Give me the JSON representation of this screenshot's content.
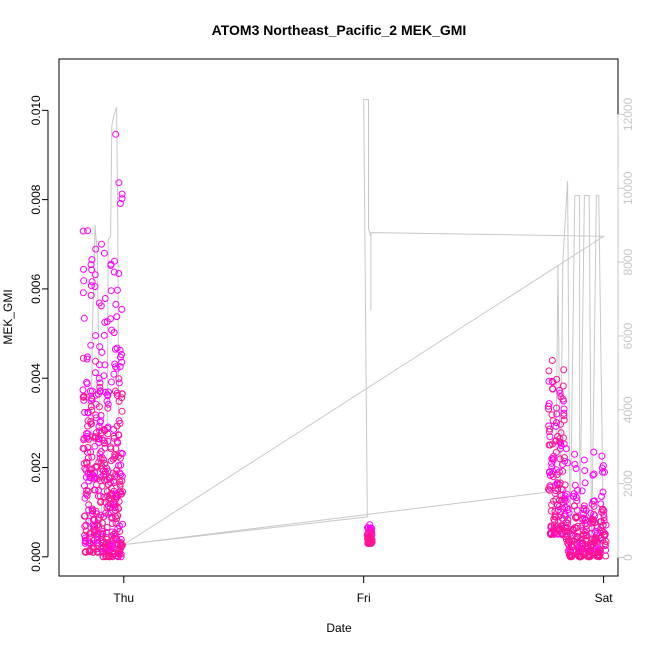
{
  "chart_data": {
    "type": "scatter",
    "title": "ATOM3 Northeast_Pacific_2 MEK_GMI",
    "xlabel": "Date",
    "ylabel": "MEK_GMI",
    "x_ticks": [
      {
        "label": "Thu",
        "day": 1.0
      },
      {
        "label": "Fri",
        "day": 2.0
      },
      {
        "label": "Sat",
        "day": 3.0
      }
    ],
    "xlim": [
      0.73,
      3.06
    ],
    "ylim_left": [
      -0.00043,
      0.01115
    ],
    "y_ticks_left": [
      0.0,
      0.002,
      0.004,
      0.006,
      0.008,
      0.01
    ],
    "y_tick_labels_left": [
      "0.000",
      "0.002",
      "0.004",
      "0.006",
      "0.008",
      "0.010"
    ],
    "ylim_right": [
      -500,
      13500
    ],
    "y_ticks_right": [
      0,
      2000,
      4000,
      6000,
      8000,
      10000,
      12000
    ],
    "y_tick_labels_right": [
      "0",
      "2000",
      "4000",
      "6000",
      "8000",
      "10000",
      "12000"
    ],
    "colors": {
      "series_a": "#ff00ff",
      "series_b": "#ff1493",
      "altitude_line": "#c8c8c8"
    },
    "point_clusters": [
      {
        "series": "series_a",
        "x_start": 0.83,
        "x_end": 0.905,
        "count": 110,
        "y_min": 0.0003,
        "y_max": 0.0076
      },
      {
        "series": "series_b",
        "x_start": 0.83,
        "x_end": 0.905,
        "count": 90,
        "y_min": 0.0001,
        "y_max": 0.0045
      },
      {
        "series": "series_a",
        "x_start": 0.905,
        "x_end": 0.965,
        "count": 80,
        "y_min": 0.0001,
        "y_max": 0.0072
      },
      {
        "series": "series_b",
        "x_start": 0.905,
        "x_end": 0.965,
        "count": 90,
        "y_min": 0.0,
        "y_max": 0.0038
      },
      {
        "series": "series_a",
        "x_start": 0.965,
        "x_end": 0.995,
        "count": 50,
        "y_min": 0.0,
        "y_max": 0.0107
      },
      {
        "series": "series_b",
        "x_start": 0.965,
        "x_end": 0.995,
        "count": 50,
        "y_min": 0.0,
        "y_max": 0.0044
      },
      {
        "series": "series_a",
        "x_start": 2.015,
        "x_end": 2.035,
        "count": 25,
        "y_min": 0.0003,
        "y_max": 0.0008
      },
      {
        "series": "series_b",
        "x_start": 2.015,
        "x_end": 2.035,
        "count": 20,
        "y_min": 0.0003,
        "y_max": 0.0006
      },
      {
        "series": "series_a",
        "x_start": 2.77,
        "x_end": 2.84,
        "count": 70,
        "y_min": 0.0005,
        "y_max": 0.0046
      },
      {
        "series": "series_b",
        "x_start": 2.77,
        "x_end": 2.84,
        "count": 80,
        "y_min": 0.0005,
        "y_max": 0.0046
      },
      {
        "series": "series_a",
        "x_start": 2.84,
        "x_end": 3.01,
        "count": 110,
        "y_min": 0.0001,
        "y_max": 0.0025
      },
      {
        "series": "series_b",
        "x_start": 2.84,
        "x_end": 3.01,
        "count": 140,
        "y_min": 0.0,
        "y_max": 0.0012
      }
    ],
    "altitude_line": [
      [
        0.845,
        100
      ],
      [
        0.86,
        2000
      ],
      [
        0.87,
        6400
      ],
      [
        0.88,
        9000
      ],
      [
        0.89,
        8200
      ],
      [
        0.9,
        3000
      ],
      [
        0.91,
        600
      ],
      [
        0.92,
        400
      ],
      [
        0.93,
        2500
      ],
      [
        0.935,
        8600
      ],
      [
        0.945,
        8700
      ],
      [
        0.95,
        11700
      ],
      [
        0.96,
        12000
      ],
      [
        0.97,
        12200
      ],
      [
        0.975,
        9000
      ],
      [
        0.98,
        1500
      ],
      [
        0.985,
        350
      ],
      [
        1.0,
        350
      ],
      [
        2.015,
        1100
      ],
      [
        2.0,
        12400
      ],
      [
        2.02,
        12400
      ],
      [
        2.02,
        8900
      ],
      [
        2.03,
        8700
      ],
      [
        2.03,
        6700
      ],
      [
        2.03,
        8800
      ],
      [
        3.0,
        8700
      ],
      [
        1.0,
        350
      ],
      [
        2.8,
        1800
      ],
      [
        2.81,
        7900
      ],
      [
        2.82,
        1500
      ],
      [
        2.83,
        8000
      ],
      [
        2.85,
        10200
      ],
      [
        2.86,
        200
      ],
      [
        2.88,
        9800
      ],
      [
        2.9,
        9800
      ],
      [
        2.9,
        300
      ],
      [
        2.92,
        9800
      ],
      [
        2.94,
        9800
      ],
      [
        2.95,
        200
      ],
      [
        2.97,
        9800
      ],
      [
        2.98,
        9800
      ],
      [
        3.0,
        150
      ]
    ]
  }
}
